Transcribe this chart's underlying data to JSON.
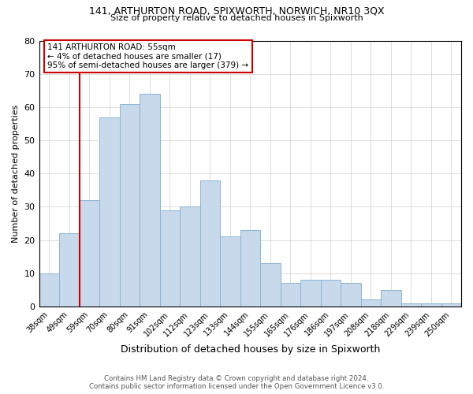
{
  "title1": "141, ARTHURTON ROAD, SPIXWORTH, NORWICH, NR10 3QX",
  "title2": "Size of property relative to detached houses in Spixworth",
  "xlabel": "Distribution of detached houses by size in Spixworth",
  "ylabel": "Number of detached properties",
  "categories": [
    "38sqm",
    "49sqm",
    "59sqm",
    "70sqm",
    "80sqm",
    "91sqm",
    "102sqm",
    "112sqm",
    "123sqm",
    "133sqm",
    "144sqm",
    "155sqm",
    "165sqm",
    "176sqm",
    "186sqm",
    "197sqm",
    "208sqm",
    "218sqm",
    "229sqm",
    "239sqm",
    "250sqm"
  ],
  "values": [
    10,
    22,
    32,
    57,
    61,
    64,
    29,
    30,
    38,
    21,
    23,
    13,
    7,
    8,
    8,
    7,
    2,
    5,
    1,
    1,
    1
  ],
  "bar_color": "#c9d9ec",
  "bar_edgecolor": "#8ab4d4",
  "vline_x_index": 2,
  "vline_color": "#cc0000",
  "ylim": [
    0,
    80
  ],
  "yticks": [
    0,
    10,
    20,
    30,
    40,
    50,
    60,
    70,
    80
  ],
  "annotation_text": "141 ARTHURTON ROAD: 55sqm\n← 4% of detached houses are smaller (17)\n95% of semi-detached houses are larger (379) →",
  "annotation_box_color": "#ffffff",
  "annotation_box_edgecolor": "#cc0000",
  "footer1": "Contains HM Land Registry data © Crown copyright and database right 2024.",
  "footer2": "Contains public sector information licensed under the Open Government Licence v3.0.",
  "background_color": "#ffffff",
  "grid_color": "#d0d0d0"
}
